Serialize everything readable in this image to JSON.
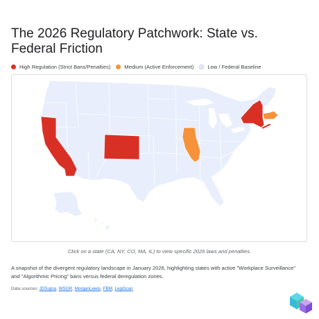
{
  "title": "The 2026 Regulatory Patchwork: State vs. Federal Friction",
  "legend": [
    {
      "label": "High Regulation (Strict Bans/Penalties)",
      "color": "#d93025"
    },
    {
      "label": "Medium (Active Enforcement)",
      "color": "#f6923a"
    },
    {
      "label": "Low / Federal Baseline",
      "color": "#e8eefc"
    }
  ],
  "map": {
    "base_color": "#e8eefc",
    "border_color": "#ffffff",
    "high_color": "#d93025",
    "medium_color": "#f6923a",
    "highlighted_states": [
      {
        "state": "CA",
        "level": "high"
      },
      {
        "state": "NY",
        "level": "high"
      },
      {
        "state": "CO",
        "level": "high"
      },
      {
        "state": "IL",
        "level": "medium"
      },
      {
        "state": "MA",
        "level": "medium"
      }
    ]
  },
  "hint": "Click on a state (CA, NY, CO, MA, IL) to view specific 2026 laws and penalties.",
  "description": "A snapshot of the divergent regulatory landscape in January 2026, highlighting states with active \"Workplace Surveillance\" and \"Algorithmic Pricing\" bans versus federal deregulation zones.",
  "sources": {
    "prefix": "Data sources: ",
    "links": [
      "JDSupra",
      "WSGR",
      "MorganLewis",
      "FBM",
      "LegiScan"
    ]
  }
}
